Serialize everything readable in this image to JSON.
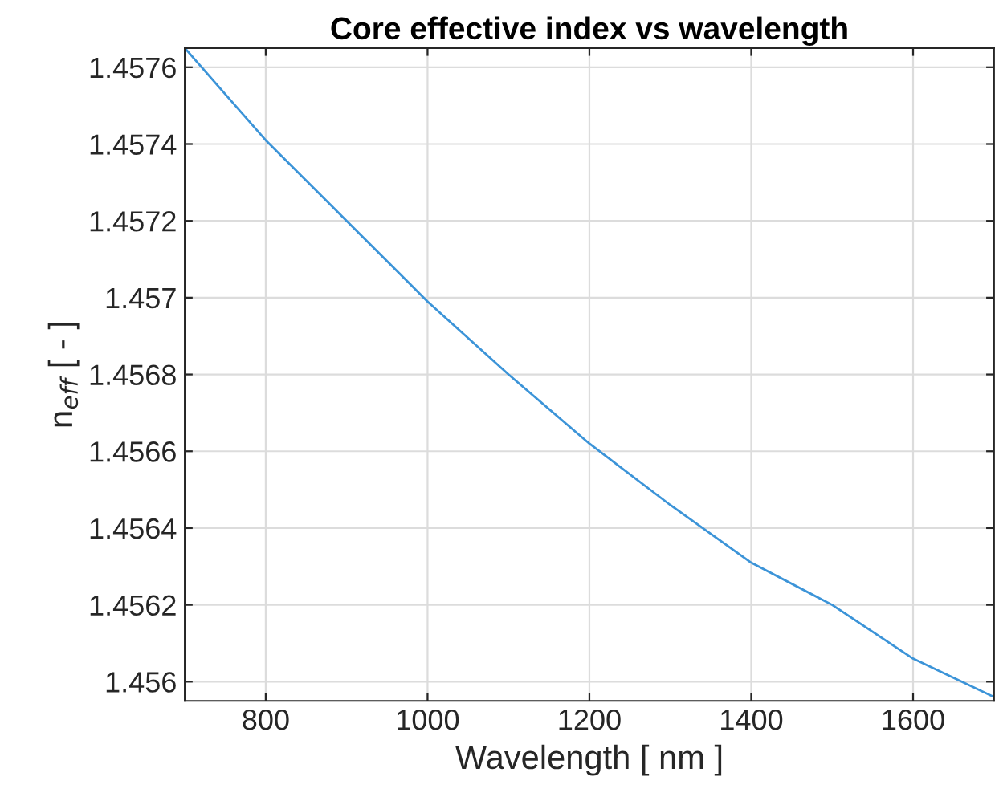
{
  "chart_data": {
    "type": "line",
    "title": "Core effective index vs wavelength",
    "xlabel": "Wavelength [ nm ]",
    "ylabel": "n$_{eff}$ [ - ]",
    "x": [
      700,
      750,
      800,
      900,
      1000,
      1100,
      1200,
      1300,
      1400,
      1500,
      1600,
      1700
    ],
    "series": [
      {
        "color": "#3c94d8",
        "values": [
          1.45765,
          1.45753,
          1.45741,
          1.4572,
          1.45699,
          1.4568,
          1.45662,
          1.45646,
          1.45631,
          1.4562,
          1.45606,
          1.45596
        ]
      }
    ],
    "xlim": [
      700,
      1700
    ],
    "xticks": [
      800,
      1000,
      1200,
      1400,
      1600
    ],
    "ylim": [
      1.45595,
      1.45765
    ],
    "yticks": [
      {
        "value": 1.456,
        "label": "1.456"
      },
      1.4562,
      1.4564,
      1.4566,
      1.4568,
      {
        "value": 1.457,
        "label": "1.457"
      },
      1.4572,
      1.4574,
      1.4576
    ],
    "grid": true
  }
}
